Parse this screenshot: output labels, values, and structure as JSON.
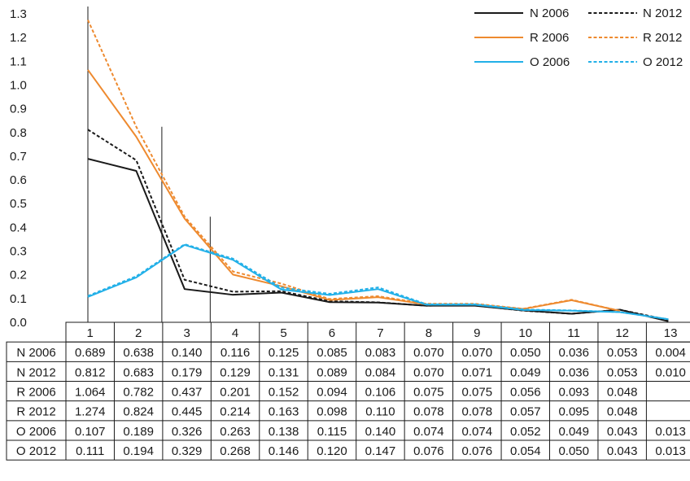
{
  "chart_data": {
    "type": "line",
    "title": "",
    "xlabel": "",
    "ylabel": "",
    "categories": [
      "1",
      "2",
      "3",
      "4",
      "5",
      "6",
      "7",
      "8",
      "9",
      "10",
      "11",
      "12",
      "13"
    ],
    "y_ticks": [
      "0.0",
      "0.1",
      "0.2",
      "0.3",
      "0.4",
      "0.5",
      "0.6",
      "0.7",
      "0.8",
      "0.9",
      "1.0",
      "1.1",
      "1.2",
      "1.3"
    ],
    "ylim": [
      0,
      1.3
    ],
    "grid": false,
    "legend_position": "top-right",
    "table_below": true,
    "series": [
      {
        "name": "N 2006",
        "color": "#1a1a1a",
        "dash": "solid",
        "values": [
          0.689,
          0.638,
          0.14,
          0.116,
          0.125,
          0.085,
          0.083,
          0.07,
          0.07,
          0.05,
          0.036,
          0.053,
          0.004
        ],
        "labels": [
          "0.689",
          "0.638",
          "0.140",
          "0.116",
          "0.125",
          "0.085",
          "0.083",
          "0.070",
          "0.070",
          "0.050",
          "0.036",
          "0.053",
          "0.004"
        ]
      },
      {
        "name": "N 2012",
        "color": "#1a1a1a",
        "dash": "dashed",
        "values": [
          0.812,
          0.683,
          0.179,
          0.129,
          0.131,
          0.089,
          0.084,
          0.07,
          0.071,
          0.049,
          0.036,
          0.053,
          0.01
        ],
        "labels": [
          "0.812",
          "0.683",
          "0.179",
          "0.129",
          "0.131",
          "0.089",
          "0.084",
          "0.070",
          "0.071",
          "0.049",
          "0.036",
          "0.053",
          "0.010"
        ]
      },
      {
        "name": "R 2006",
        "color": "#ee8a2f",
        "dash": "solid",
        "values": [
          1.064,
          0.782,
          0.437,
          0.201,
          0.152,
          0.094,
          0.106,
          0.075,
          0.075,
          0.056,
          0.093,
          0.048,
          null
        ],
        "labels": [
          "1.064",
          "0.782",
          "0.437",
          "0.201",
          "0.152",
          "0.094",
          "0.106",
          "0.075",
          "0.075",
          "0.056",
          "0.093",
          "0.048",
          ""
        ]
      },
      {
        "name": "R 2012",
        "color": "#ee8a2f",
        "dash": "dashed",
        "values": [
          1.274,
          0.824,
          0.445,
          0.214,
          0.163,
          0.098,
          0.11,
          0.078,
          0.078,
          0.057,
          0.095,
          0.048,
          null
        ],
        "labels": [
          "1.274",
          "0.824",
          "0.445",
          "0.214",
          "0.163",
          "0.098",
          "0.110",
          "0.078",
          "0.078",
          "0.057",
          "0.095",
          "0.048",
          ""
        ]
      },
      {
        "name": "O 2006",
        "color": "#22b0e8",
        "dash": "solid",
        "values": [
          0.107,
          0.189,
          0.326,
          0.263,
          0.138,
          0.115,
          0.14,
          0.074,
          0.074,
          0.052,
          0.049,
          0.043,
          0.013
        ],
        "labels": [
          "0.107",
          "0.189",
          "0.326",
          "0.263",
          "0.138",
          "0.115",
          "0.140",
          "0.074",
          "0.074",
          "0.052",
          "0.049",
          "0.043",
          "0.013"
        ]
      },
      {
        "name": "O 2012",
        "color": "#22b0e8",
        "dash": "dashed",
        "values": [
          0.111,
          0.194,
          0.329,
          0.268,
          0.146,
          0.12,
          0.147,
          0.076,
          0.076,
          0.054,
          0.05,
          0.043,
          0.013
        ],
        "labels": [
          "0.111",
          "0.194",
          "0.329",
          "0.268",
          "0.146",
          "0.120",
          "0.147",
          "0.076",
          "0.076",
          "0.054",
          "0.050",
          "0.043",
          "0.013"
        ]
      }
    ]
  }
}
